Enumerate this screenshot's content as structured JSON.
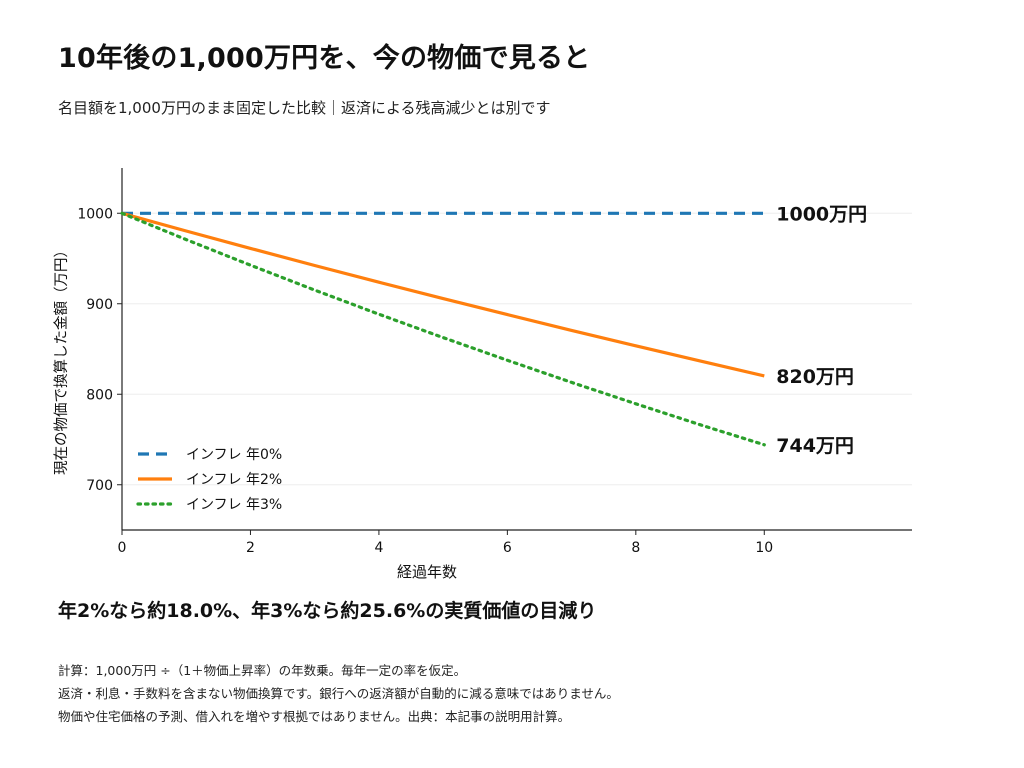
{
  "title": "10年後の1,000万円を、今の物価で見ると",
  "subtitle": "名目額を1,000万円のまま固定した比較｜返済による残高減少とは別です",
  "chart_data": {
    "type": "line",
    "xlabel": "経過年数",
    "ylabel": "現在の物価で換算した金額（万円）",
    "xlim": [
      0,
      12.3
    ],
    "ylim": [
      650,
      1050
    ],
    "xticks": [
      0,
      2,
      4,
      6,
      8,
      10
    ],
    "yticks": [
      700,
      800,
      900,
      1000
    ],
    "grid": "horizontal-light",
    "legend": "lower-left",
    "x": [
      0,
      1,
      2,
      3,
      4,
      5,
      6,
      7,
      8,
      9,
      10
    ],
    "series": [
      {
        "name": "インフレ 年0%",
        "color": "#1f77b4",
        "style": "dashed",
        "values": [
          1000,
          1000,
          1000,
          1000,
          1000,
          1000,
          1000,
          1000,
          1000,
          1000,
          1000
        ],
        "end_label": "1000万円"
      },
      {
        "name": "インフレ 年2%",
        "color": "#ff7f0e",
        "style": "solid",
        "values": [
          1000,
          980.4,
          961.2,
          942.3,
          923.8,
          905.7,
          888.0,
          870.6,
          853.5,
          836.8,
          820.3
        ],
        "end_label": "820万円"
      },
      {
        "name": "インフレ 年3%",
        "color": "#2ca02c",
        "style": "dotted",
        "values": [
          1000,
          970.9,
          942.6,
          915.1,
          888.5,
          862.6,
          837.5,
          813.1,
          789.4,
          766.4,
          744.1
        ],
        "end_label": "744万円"
      }
    ]
  },
  "takeaway": "年2%なら約18.0%、年3%なら約25.6%の実質価値の目減り",
  "footnotes": [
    "計算：1,000万円 ÷（1＋物価上昇率）の年数乗。毎年一定の率を仮定。",
    "返済・利息・手数料を含まない物価換算です。銀行への返済額が自動的に減る意味ではありません。",
    "物価や住宅価格の予測、借入れを増やす根拠ではありません。出典：本記事の説明用計算。"
  ]
}
